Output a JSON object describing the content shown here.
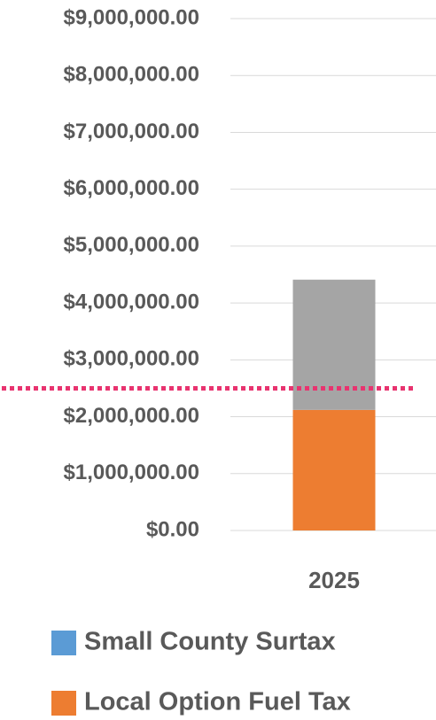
{
  "chart_data": {
    "type": "stacked_bar",
    "categories": [
      "2025"
    ],
    "series": [
      {
        "name": "Small County Surtax",
        "color": "#5b9bd5",
        "values": [
          0
        ]
      },
      {
        "name": "Local Option Fuel Tax",
        "color": "#ed7d31",
        "values": [
          2120000
        ]
      },
      {
        "color": "#a5a5a5",
        "values": [
          2290000
        ]
      }
    ],
    "ylim": [
      0,
      9000000
    ],
    "yticks": [
      {
        "value": 0,
        "label": "$0.00"
      },
      {
        "value": 1000000,
        "label": "$1,000,000.00"
      },
      {
        "value": 2000000,
        "label": "$2,000,000.00"
      },
      {
        "value": 3000000,
        "label": "$3,000,000.00"
      },
      {
        "value": 4000000,
        "label": "$4,000,000.00"
      },
      {
        "value": 5000000,
        "label": "$5,000,000.00"
      },
      {
        "value": 6000000,
        "label": "$6,000,000.00"
      },
      {
        "value": 7000000,
        "label": "$7,000,000.00"
      },
      {
        "value": 8000000,
        "label": "$8,000,000.00"
      },
      {
        "value": 9000000,
        "label": "$9,000,000.00"
      }
    ],
    "grid": true,
    "reference_line": {
      "value": 2500000,
      "color": "#e8336f"
    },
    "legend": "bottom"
  }
}
